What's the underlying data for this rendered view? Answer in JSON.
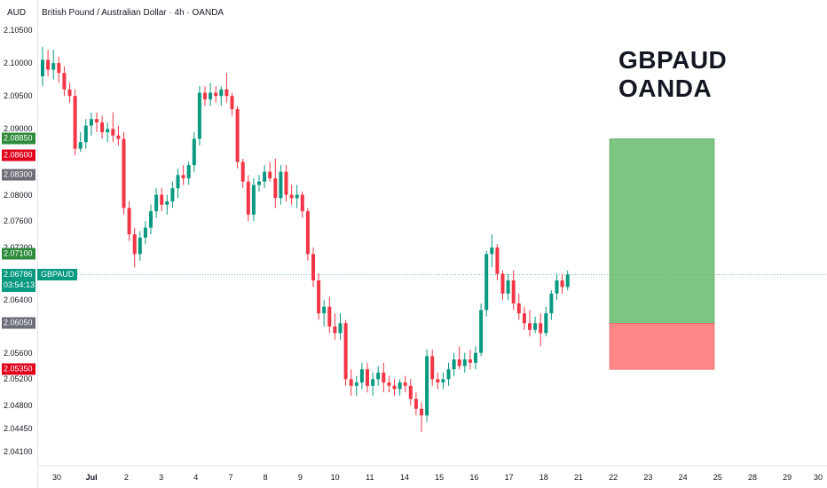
{
  "header": {
    "currency": "AUD",
    "title": "British Pound / Australian Dollar · 4h · OANDA"
  },
  "overlay": {
    "line1": "GBPAUD",
    "line2": "OANDA"
  },
  "current_price": {
    "value": "2.06786",
    "countdown": "03:54:13",
    "symbol": "GBPAUD"
  },
  "colors": {
    "up": "#089981",
    "down": "#f23645",
    "target": "#2e8b3c",
    "stop": "#e0001b",
    "entry": "#6b6e78"
  },
  "price_axis": {
    "ticks": [
      "2.10500",
      "2.10000",
      "2.09500",
      "2.09000",
      "2.08600",
      "2.08000",
      "2.07600",
      "2.07200",
      "2.06400",
      "2.05600",
      "2.05200",
      "2.04800",
      "2.04450",
      "2.04100"
    ],
    "badges": [
      {
        "label": "2.08850",
        "kind": "target"
      },
      {
        "label": "2.08600",
        "kind": "stop"
      },
      {
        "label": "2.08300",
        "kind": "entry"
      },
      {
        "label": "2.07100",
        "kind": "target"
      },
      {
        "label": "2.06050",
        "kind": "entry"
      },
      {
        "label": "2.05350",
        "kind": "stop"
      }
    ]
  },
  "time_axis": [
    "30",
    "Jul",
    "2",
    "3",
    "4",
    "7",
    "8",
    "9",
    "10",
    "11",
    "14",
    "15",
    "16",
    "17",
    "18",
    "21",
    "22",
    "23",
    "24",
    "25",
    "28",
    "29",
    "30"
  ],
  "position_tool": {
    "type": "long",
    "entry": 2.0605,
    "target": 2.0885,
    "stop": 2.0535
  },
  "chart_data": {
    "type": "candlestick",
    "title": "British Pound / Australian Dollar · 4h · OANDA",
    "ylim": [
      2.039,
      2.1065
    ],
    "candles": [
      [
        2.098,
        2.1025,
        2.0965,
        2.1005
      ],
      [
        2.1005,
        2.102,
        2.098,
        2.099
      ],
      [
        2.099,
        2.102,
        2.0975,
        2.1
      ],
      [
        2.1,
        2.101,
        2.097,
        2.0985
      ],
      [
        2.0985,
        2.0995,
        2.095,
        2.096
      ],
      [
        2.096,
        2.097,
        2.094,
        2.095
      ],
      [
        2.095,
        2.096,
        2.086,
        2.087
      ],
      [
        2.087,
        2.0895,
        2.0865,
        2.088
      ],
      [
        2.088,
        2.0915,
        2.087,
        2.0905
      ],
      [
        2.0905,
        2.0925,
        2.089,
        2.0915
      ],
      [
        2.0915,
        2.0925,
        2.0895,
        2.091
      ],
      [
        2.091,
        2.092,
        2.0885,
        2.0895
      ],
      [
        2.0895,
        2.091,
        2.088,
        2.09
      ],
      [
        2.09,
        2.0925,
        2.088,
        2.089
      ],
      [
        2.089,
        2.0905,
        2.0875,
        2.0885
      ],
      [
        2.0885,
        2.0895,
        2.077,
        2.078
      ],
      [
        2.078,
        2.079,
        2.073,
        2.074
      ],
      [
        2.074,
        2.075,
        2.069,
        2.071
      ],
      [
        2.071,
        2.0745,
        2.07,
        2.0735
      ],
      [
        2.0735,
        2.076,
        2.0725,
        2.075
      ],
      [
        2.075,
        2.0785,
        2.074,
        2.0775
      ],
      [
        2.0775,
        2.081,
        2.0765,
        2.08
      ],
      [
        2.08,
        2.081,
        2.0775,
        2.0785
      ],
      [
        2.0785,
        2.08,
        2.077,
        2.079
      ],
      [
        2.079,
        2.082,
        2.078,
        2.081
      ],
      [
        2.081,
        2.084,
        2.0795,
        2.083
      ],
      [
        2.083,
        2.0845,
        2.0815,
        2.0825
      ],
      [
        2.0825,
        2.085,
        2.0815,
        2.0845
      ],
      [
        2.0845,
        2.0895,
        2.0835,
        2.0885
      ],
      [
        2.0885,
        2.0965,
        2.0875,
        2.0955
      ],
      [
        2.0955,
        2.0965,
        2.0935,
        2.0945
      ],
      [
        2.0945,
        2.097,
        2.0935,
        2.0955
      ],
      [
        2.0955,
        2.0965,
        2.094,
        2.095
      ],
      [
        2.095,
        2.0965,
        2.0935,
        2.096
      ],
      [
        2.096,
        2.0985,
        2.094,
        2.095
      ],
      [
        2.095,
        2.0955,
        2.092,
        2.093
      ],
      [
        2.093,
        2.0935,
        2.084,
        2.085
      ],
      [
        2.085,
        2.0855,
        2.081,
        2.082
      ],
      [
        2.082,
        2.083,
        2.076,
        2.077
      ],
      [
        2.077,
        2.0825,
        2.076,
        2.0815
      ],
      [
        2.0815,
        2.083,
        2.0805,
        2.082
      ],
      [
        2.082,
        2.0845,
        2.081,
        2.0835
      ],
      [
        2.0835,
        2.085,
        2.082,
        2.0825
      ],
      [
        2.0825,
        2.0855,
        2.078,
        2.0795
      ],
      [
        2.0795,
        2.0845,
        2.0785,
        2.0835
      ],
      [
        2.0835,
        2.0845,
        2.079,
        2.08
      ],
      [
        2.08,
        2.0815,
        2.0785,
        2.0795
      ],
      [
        2.0795,
        2.0815,
        2.078,
        2.08
      ],
      [
        2.08,
        2.0805,
        2.0765,
        2.0775
      ],
      [
        2.0775,
        2.078,
        2.07,
        2.071
      ],
      [
        2.071,
        2.072,
        2.066,
        2.067
      ],
      [
        2.067,
        2.068,
        2.061,
        2.062
      ],
      [
        2.062,
        2.064,
        2.06,
        2.063
      ],
      [
        2.063,
        2.0645,
        2.059,
        2.06
      ],
      [
        2.06,
        2.062,
        2.058,
        2.059
      ],
      [
        2.059,
        2.062,
        2.058,
        2.0605
      ],
      [
        2.0605,
        2.061,
        2.051,
        2.052
      ],
      [
        2.052,
        2.0535,
        2.0495,
        2.051
      ],
      [
        2.051,
        2.0525,
        2.0495,
        2.0515
      ],
      [
        2.0515,
        2.0545,
        2.0505,
        2.0535
      ],
      [
        2.0535,
        2.0545,
        2.05,
        2.051
      ],
      [
        2.051,
        2.053,
        2.0495,
        2.052
      ],
      [
        2.052,
        2.054,
        2.051,
        2.053
      ],
      [
        2.053,
        2.0545,
        2.05,
        2.0515
      ],
      [
        2.0515,
        2.0525,
        2.05,
        2.051
      ],
      [
        2.051,
        2.052,
        2.0495,
        2.0505
      ],
      [
        2.0505,
        2.052,
        2.0495,
        2.0515
      ],
      [
        2.0515,
        2.0525,
        2.05,
        2.051
      ],
      [
        2.051,
        2.052,
        2.048,
        2.049
      ],
      [
        2.049,
        2.05,
        2.0465,
        2.0475
      ],
      [
        2.0475,
        2.0485,
        2.044,
        2.0465
      ],
      [
        2.0465,
        2.0565,
        2.0455,
        2.0555
      ],
      [
        2.0555,
        2.0565,
        2.051,
        2.052
      ],
      [
        2.052,
        2.053,
        2.0505,
        2.0515
      ],
      [
        2.0515,
        2.053,
        2.0505,
        2.052
      ],
      [
        2.052,
        2.0545,
        2.051,
        2.0535
      ],
      [
        2.0535,
        2.056,
        2.0525,
        2.055
      ],
      [
        2.055,
        2.057,
        2.0535,
        2.054
      ],
      [
        2.054,
        2.056,
        2.053,
        2.055
      ],
      [
        2.055,
        2.0565,
        2.0535,
        2.0545
      ],
      [
        2.0545,
        2.057,
        2.0535,
        2.056
      ],
      [
        2.056,
        2.0635,
        2.0555,
        2.0625
      ],
      [
        2.0625,
        2.0715,
        2.0615,
        2.071
      ],
      [
        2.071,
        2.074,
        2.069,
        2.072
      ],
      [
        2.072,
        2.0725,
        2.067,
        2.068
      ],
      [
        2.068,
        2.0685,
        2.064,
        2.065
      ],
      [
        2.065,
        2.068,
        2.064,
        2.067
      ],
      [
        2.067,
        2.0685,
        2.0625,
        2.0635
      ],
      [
        2.0635,
        2.065,
        2.061,
        2.062
      ],
      [
        2.062,
        2.063,
        2.0595,
        2.0605
      ],
      [
        2.0605,
        2.0625,
        2.0585,
        2.0595
      ],
      [
        2.0595,
        2.0615,
        2.059,
        2.0605
      ],
      [
        2.0605,
        2.062,
        2.057,
        2.059
      ],
      [
        2.059,
        2.063,
        2.0585,
        2.062
      ],
      [
        2.062,
        2.0655,
        2.061,
        2.065
      ],
      [
        2.065,
        2.068,
        2.064,
        2.067
      ],
      [
        2.067,
        2.068,
        2.065,
        2.066
      ],
      [
        2.066,
        2.0685,
        2.0655,
        2.0679
      ]
    ]
  }
}
